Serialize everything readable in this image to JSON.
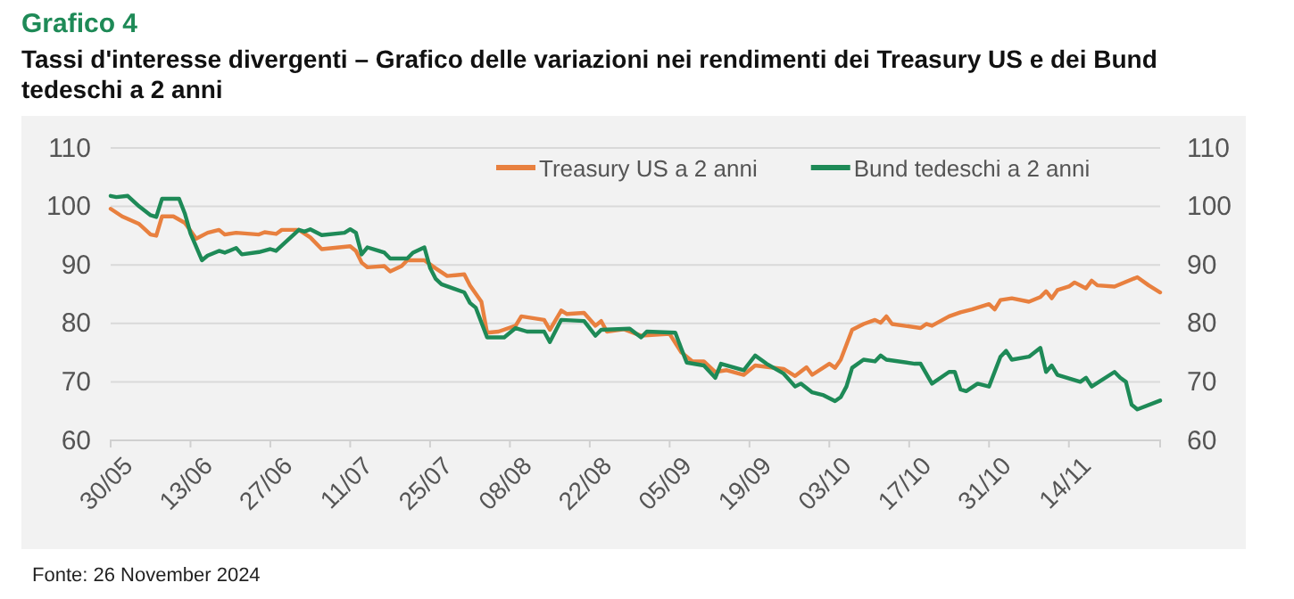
{
  "chart_data": {
    "type": "line",
    "title": "Grafico 4",
    "subtitle": "Tassi d'interesse divergenti – Grafico delle variazioni nei rendimenti dei Treasury US e dei Bund tedeschi a 2 anni",
    "annotations": [
      "Fonte: 26 November 2024"
    ],
    "xlim": [
      "2024-05-30",
      "2024-11-30"
    ],
    "xticks": [
      {
        "value": "2024-05-30",
        "label": "30/05"
      },
      {
        "value": "2024-06-13",
        "label": "13/06"
      },
      {
        "value": "2024-06-27",
        "label": "27/06"
      },
      {
        "value": "2024-07-11",
        "label": "11/07"
      },
      {
        "value": "2024-07-25",
        "label": "25/07"
      },
      {
        "value": "2024-08-08",
        "label": "08/08"
      },
      {
        "value": "2024-08-22",
        "label": "22/08"
      },
      {
        "value": "2024-09-05",
        "label": "05/09"
      },
      {
        "value": "2024-09-19",
        "label": "19/09"
      },
      {
        "value": "2024-10-03",
        "label": "03/10"
      },
      {
        "value": "2024-10-17",
        "label": "17/10"
      },
      {
        "value": "2024-10-31",
        "label": "31/10"
      },
      {
        "value": "2024-11-14",
        "label": "14/11"
      }
    ],
    "ylim": [
      60,
      110
    ],
    "yticks": [
      60,
      70,
      80,
      90,
      100,
      110
    ],
    "y2lim": [
      60,
      110
    ],
    "y2ticks": [
      60,
      70,
      80,
      90,
      100,
      110
    ],
    "grid": "y",
    "legend": "top",
    "marker": "none",
    "line_style": "solid",
    "series": [
      {
        "name": "Treasury US a 2 anni",
        "color": "#e8803f",
        "x": [
          "2024-05-30",
          "2024-06-01",
          "2024-06-04",
          "2024-06-06",
          "2024-06-07",
          "2024-06-08",
          "2024-06-10",
          "2024-06-12",
          "2024-06-14",
          "2024-06-16",
          "2024-06-18",
          "2024-06-19",
          "2024-06-21",
          "2024-06-25",
          "2024-06-26",
          "2024-06-28",
          "2024-06-29",
          "2024-07-02",
          "2024-07-04",
          "2024-07-06",
          "2024-07-11",
          "2024-07-12",
          "2024-07-13",
          "2024-07-14",
          "2024-07-17",
          "2024-07-18",
          "2024-07-20",
          "2024-07-21",
          "2024-07-24",
          "2024-07-26",
          "2024-07-28",
          "2024-07-31",
          "2024-08-01",
          "2024-08-03",
          "2024-08-04",
          "2024-08-06",
          "2024-08-09",
          "2024-08-10",
          "2024-08-12",
          "2024-08-14",
          "2024-08-15",
          "2024-08-17",
          "2024-08-18",
          "2024-08-21",
          "2024-08-23",
          "2024-08-24",
          "2024-08-25",
          "2024-08-28",
          "2024-08-31",
          "2024-09-05",
          "2024-09-07",
          "2024-09-09",
          "2024-09-11",
          "2024-09-13",
          "2024-09-15",
          "2024-09-18",
          "2024-09-20",
          "2024-09-25",
          "2024-09-27",
          "2024-09-29",
          "2024-09-30",
          "2024-10-03",
          "2024-10-04",
          "2024-10-05",
          "2024-10-07",
          "2024-10-09",
          "2024-10-11",
          "2024-10-12",
          "2024-10-13",
          "2024-10-14",
          "2024-10-19",
          "2024-10-20",
          "2024-10-21",
          "2024-10-24",
          "2024-10-26",
          "2024-10-28",
          "2024-10-31",
          "2024-11-01",
          "2024-11-02",
          "2024-11-04",
          "2024-11-07",
          "2024-11-09",
          "2024-11-10",
          "2024-11-11",
          "2024-11-12",
          "2024-11-14",
          "2024-11-15",
          "2024-11-17",
          "2024-11-18",
          "2024-11-19",
          "2024-11-22",
          "2024-11-26",
          "2024-11-28",
          "2024-11-30"
        ],
        "values": [
          99.6,
          98.3,
          97.0,
          95.2,
          95.0,
          98.3,
          98.3,
          97.2,
          94.5,
          95.5,
          96.0,
          95.2,
          95.5,
          95.2,
          95.6,
          95.3,
          96.0,
          96.0,
          94.7,
          92.7,
          93.2,
          92.4,
          90.4,
          89.6,
          89.8,
          88.9,
          89.8,
          90.8,
          90.8,
          89.4,
          88.1,
          88.4,
          86.5,
          83.7,
          78.4,
          78.6,
          79.6,
          81.2,
          80.9,
          80.6,
          78.9,
          82.2,
          81.6,
          81.8,
          79.6,
          80.4,
          78.6,
          79.0,
          77.9,
          78.2,
          75.1,
          73.5,
          73.5,
          71.7,
          72.0,
          71.2,
          72.8,
          72.2,
          71.0,
          72.5,
          71.2,
          73.1,
          72.4,
          73.8,
          78.9,
          79.9,
          80.6,
          80.1,
          81.2,
          79.9,
          79.2,
          79.9,
          79.6,
          81.2,
          81.9,
          82.4,
          83.3,
          82.4,
          84.0,
          84.3,
          83.7,
          84.5,
          85.5,
          84.3,
          85.7,
          86.3,
          87.0,
          86.0,
          87.3,
          86.5,
          86.3,
          87.9,
          86.5,
          85.3
        ]
      },
      {
        "name": "Bund tedeschi a 2 anni",
        "color": "#1e8a57",
        "x": [
          "2024-05-30",
          "2024-05-31",
          "2024-06-02",
          "2024-06-04",
          "2024-06-06",
          "2024-06-07",
          "2024-06-08",
          "2024-06-11",
          "2024-06-12",
          "2024-06-13",
          "2024-06-15",
          "2024-06-16",
          "2024-06-18",
          "2024-06-19",
          "2024-06-21",
          "2024-06-22",
          "2024-06-25",
          "2024-06-27",
          "2024-06-28",
          "2024-07-02",
          "2024-07-03",
          "2024-07-04",
          "2024-07-06",
          "2024-07-10",
          "2024-07-11",
          "2024-07-12",
          "2024-07-13",
          "2024-07-14",
          "2024-07-16",
          "2024-07-17",
          "2024-07-18",
          "2024-07-21",
          "2024-07-22",
          "2024-07-24",
          "2024-07-25",
          "2024-07-26",
          "2024-07-27",
          "2024-07-31",
          "2024-08-01",
          "2024-08-02",
          "2024-08-04",
          "2024-08-07",
          "2024-08-09",
          "2024-08-11",
          "2024-08-14",
          "2024-08-15",
          "2024-08-17",
          "2024-08-21",
          "2024-08-23",
          "2024-08-24",
          "2024-08-29",
          "2024-08-31",
          "2024-09-01",
          "2024-09-06",
          "2024-09-07",
          "2024-09-08",
          "2024-09-11",
          "2024-09-13",
          "2024-09-14",
          "2024-09-18",
          "2024-09-20",
          "2024-09-22",
          "2024-09-25",
          "2024-09-27",
          "2024-09-28",
          "2024-09-30",
          "2024-10-02",
          "2024-10-04",
          "2024-10-05",
          "2024-10-06",
          "2024-10-07",
          "2024-10-09",
          "2024-10-11",
          "2024-10-12",
          "2024-10-13",
          "2024-10-18",
          "2024-10-19",
          "2024-10-21",
          "2024-10-24",
          "2024-10-25",
          "2024-10-26",
          "2024-10-27",
          "2024-10-29",
          "2024-10-31",
          "2024-11-02",
          "2024-11-03",
          "2024-11-04",
          "2024-11-07",
          "2024-11-09",
          "2024-11-10",
          "2024-11-11",
          "2024-11-12",
          "2024-11-16",
          "2024-11-17",
          "2024-11-18",
          "2024-11-22",
          "2024-11-23",
          "2024-11-24",
          "2024-11-25",
          "2024-11-26",
          "2024-11-30"
        ],
        "values": [
          101.8,
          101.6,
          101.8,
          100.0,
          98.5,
          98.2,
          101.3,
          101.3,
          98.8,
          95.4,
          90.8,
          91.6,
          92.4,
          92.1,
          92.9,
          91.8,
          92.2,
          92.7,
          92.4,
          96.0,
          95.7,
          96.1,
          95.1,
          95.5,
          96.1,
          95.5,
          91.8,
          93.0,
          92.4,
          92.1,
          91.1,
          91.1,
          92.1,
          93.0,
          89.5,
          87.6,
          86.7,
          85.3,
          83.5,
          82.7,
          77.6,
          77.6,
          79.2,
          78.6,
          78.6,
          76.8,
          80.6,
          80.4,
          77.9,
          78.9,
          79.1,
          77.6,
          78.6,
          78.4,
          75.8,
          73.3,
          72.8,
          70.7,
          73.1,
          72.0,
          74.5,
          73.1,
          71.4,
          69.2,
          69.7,
          68.2,
          67.7,
          66.7,
          67.4,
          69.2,
          72.4,
          73.8,
          73.5,
          74.5,
          73.8,
          73.1,
          73.1,
          69.7,
          71.7,
          71.7,
          68.7,
          68.4,
          69.7,
          69.2,
          74.3,
          75.3,
          73.8,
          74.3,
          75.8,
          71.7,
          72.8,
          71.2,
          70.0,
          70.7,
          69.2,
          71.7,
          70.7,
          70.0,
          66.1,
          65.3,
          66.8
        ]
      }
    ]
  }
}
